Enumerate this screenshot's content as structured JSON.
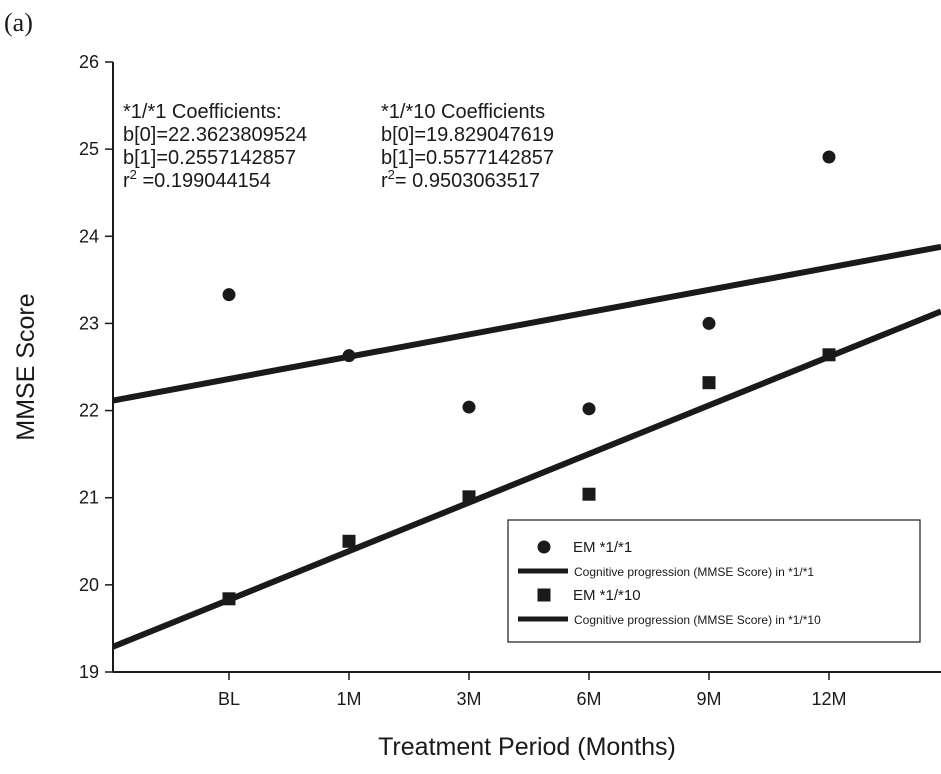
{
  "panel_label": "(a)",
  "chart_data": {
    "type": "scatter",
    "xlabel": "Treatment Period (Months)",
    "ylabel": "MMSE Score",
    "categories": [
      "BL",
      "1M",
      "3M",
      "6M",
      "9M",
      "12M"
    ],
    "ylim": [
      19,
      26
    ],
    "yticks": [
      19,
      20,
      21,
      22,
      23,
      24,
      25,
      26
    ],
    "grid": false,
    "legend_position": "bottom-right",
    "series": [
      {
        "name": "EM *1/*1",
        "marker": "circle",
        "color": "#1a1a1a",
        "values": [
          23.33,
          22.63,
          22.04,
          22.02,
          23.0,
          24.91
        ]
      },
      {
        "name": "EM *1/*10",
        "marker": "square",
        "color": "#1a1a1a",
        "values": [
          19.84,
          20.5,
          21.01,
          21.04,
          22.32,
          22.64
        ]
      }
    ],
    "fit_lines": [
      {
        "name": "Cognitive progression (MMSE Score) in *1/*1",
        "color": "#1a1a1a",
        "intercept": 22.3623809524,
        "slope": 0.2557142857
      },
      {
        "name": "Cognitive progression (MMSE Score) in *1/*10",
        "color": "#1a1a1a",
        "intercept": 19.829047619,
        "slope": 0.5577142857
      }
    ],
    "annotations": {
      "a": {
        "title": "*1/*1 Coefficients:",
        "b0": "b[0]=22.3623809524",
        "b1": "b[1]=0.2557142857",
        "r2_prefix": "r",
        "r2_sup": "2",
        "r2_value": " =0.199044154"
      },
      "b": {
        "title": "*1/*10 Coefficients",
        "b0": "b[0]=19.829047619",
        "b1": "b[1]=0.5577142857",
        "r2_prefix": "r",
        "r2_sup": "2",
        "r2_value": "= 0.9503063517"
      }
    }
  }
}
